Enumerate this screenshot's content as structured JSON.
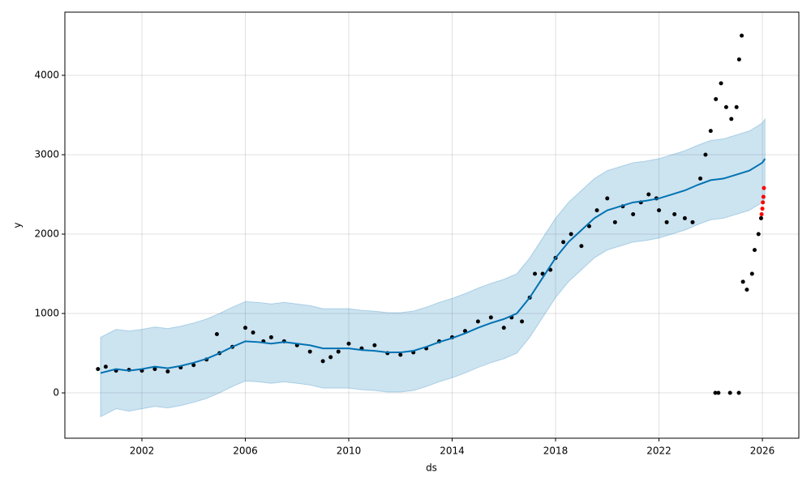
{
  "chart_data": {
    "type": "forecast",
    "xlabel": "ds",
    "ylabel": "y",
    "xlim": [
      1999.02,
      2027.41
    ],
    "ylim": [
      -571,
      4796
    ],
    "xticks": [
      2002,
      2006,
      2010,
      2014,
      2018,
      2022,
      2026
    ],
    "yticks": [
      0,
      1000,
      2000,
      3000,
      4000
    ],
    "grid": true,
    "observed": {
      "color": "#000000",
      "x": [
        2000.3,
        2000.6,
        2001,
        2001.5,
        2002,
        2002.5,
        2003,
        2003.5,
        2004,
        2004.5,
        2004.9,
        2005,
        2005.5,
        2006,
        2006.3,
        2006.7,
        2007,
        2007.5,
        2008,
        2008.5,
        2009,
        2009.3,
        2009.6,
        2010,
        2010.5,
        2011,
        2011.5,
        2012,
        2012.5,
        2013,
        2013.5,
        2014,
        2014.5,
        2015,
        2015.5,
        2016,
        2016.3,
        2016.7,
        2017,
        2017.2,
        2017.5,
        2017.8,
        2018,
        2018.3,
        2018.6,
        2019,
        2019.3,
        2019.6,
        2020,
        2020.3,
        2020.6,
        2021,
        2021.3,
        2021.6,
        2021.9,
        2022,
        2022.3,
        2022.6,
        2023,
        2023.3,
        2023.6,
        2023.8,
        2024,
        2024.18,
        2024.2,
        2024.3,
        2024.4,
        2024.6,
        2024.75,
        2024.8,
        2025,
        2025.09,
        2025.1,
        2025.2,
        2025.25,
        2025.4,
        2025.6,
        2025.7,
        2025.85,
        2025.95
      ],
      "values": [
        300,
        330,
        280,
        290,
        280,
        300,
        270,
        320,
        350,
        420,
        740,
        500,
        580,
        820,
        760,
        650,
        700,
        650,
        600,
        520,
        400,
        450,
        520,
        620,
        560,
        600,
        500,
        480,
        510,
        560,
        650,
        700,
        780,
        900,
        950,
        820,
        950,
        900,
        1200,
        1500,
        1500,
        1550,
        1700,
        1900,
        2000,
        1850,
        2100,
        2300,
        2450,
        2150,
        2350,
        2250,
        2400,
        2500,
        2450,
        2300,
        2150,
        2250,
        2200,
        2150,
        2700,
        3000,
        3300,
        0,
        3700,
        0,
        3900,
        3600,
        0,
        3450,
        3600,
        0,
        4200,
        4500,
        1400,
        1300,
        1500,
        1800,
        2000,
        2200
      ]
    },
    "highlighted": {
      "color": "#ff0000",
      "x": [
        2025.97,
        2026,
        2026.02,
        2026.04,
        2026.06
      ],
      "values": [
        2250,
        2320,
        2400,
        2470,
        2580
      ]
    },
    "forecast": {
      "color": "#0072B2",
      "band_color": "#0072B2",
      "x": [
        2000.4,
        2001,
        2001.5,
        2002,
        2002.5,
        2003,
        2003.5,
        2004,
        2004.5,
        2005,
        2005.5,
        2006,
        2006.5,
        2007,
        2007.5,
        2008,
        2008.5,
        2009,
        2009.5,
        2010,
        2010.5,
        2011,
        2011.5,
        2012,
        2012.5,
        2013,
        2013.5,
        2014,
        2014.5,
        2015,
        2015.5,
        2016,
        2016.5,
        2017,
        2017.5,
        2018,
        2018.5,
        2019,
        2019.5,
        2020,
        2020.5,
        2021,
        2021.5,
        2022,
        2022.5,
        2023,
        2023.5,
        2024,
        2024.5,
        2025,
        2025.5,
        2026,
        2026.1
      ],
      "values": [
        250,
        300,
        280,
        300,
        330,
        310,
        340,
        380,
        430,
        500,
        580,
        650,
        640,
        620,
        640,
        620,
        600,
        560,
        560,
        560,
        540,
        530,
        510,
        510,
        530,
        580,
        640,
        690,
        750,
        820,
        880,
        930,
        1000,
        1200,
        1450,
        1700,
        1900,
        2050,
        2200,
        2300,
        2350,
        2400,
        2420,
        2450,
        2500,
        2550,
        2620,
        2680,
        2700,
        2750,
        2800,
        2900,
        2950
      ],
      "lower": [
        -300,
        -200,
        -230,
        -200,
        -170,
        -190,
        -160,
        -120,
        -70,
        0,
        80,
        150,
        140,
        120,
        140,
        120,
        100,
        60,
        60,
        60,
        40,
        30,
        10,
        10,
        30,
        80,
        140,
        190,
        250,
        320,
        380,
        430,
        500,
        700,
        950,
        1200,
        1400,
        1550,
        1700,
        1800,
        1850,
        1900,
        1920,
        1950,
        2000,
        2050,
        2120,
        2180,
        2200,
        2250,
        2300,
        2400,
        2450
      ],
      "upper": [
        700,
        800,
        780,
        800,
        830,
        810,
        840,
        880,
        930,
        1000,
        1080,
        1150,
        1140,
        1120,
        1140,
        1120,
        1100,
        1060,
        1060,
        1060,
        1040,
        1030,
        1010,
        1010,
        1030,
        1080,
        1140,
        1190,
        1250,
        1320,
        1380,
        1430,
        1500,
        1700,
        1950,
        2200,
        2400,
        2550,
        2700,
        2800,
        2850,
        2900,
        2920,
        2950,
        3000,
        3050,
        3120,
        3180,
        3200,
        3250,
        3300,
        3400,
        3450
      ]
    }
  }
}
